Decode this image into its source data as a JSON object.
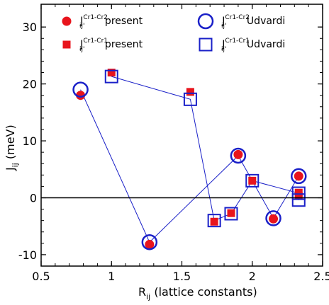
{
  "chart_data": {
    "type": "scatter",
    "xlabel": {
      "main": "R",
      "sub": "ij",
      "rest": " (lattice constants)"
    },
    "ylabel": {
      "main": "J",
      "sub": "ij",
      "rest": " (meV)"
    },
    "xlim": [
      0.5,
      2.5
    ],
    "ylim": [
      -12,
      34
    ],
    "xticks": [
      0.5,
      1.0,
      1.5,
      2.0,
      2.5
    ],
    "xtick_labels": [
      "0.5",
      "1",
      "1.5",
      "2",
      "2.5"
    ],
    "yticks": [
      -10,
      0,
      10,
      20,
      30
    ],
    "ytick_labels": [
      "-10",
      "0",
      "10",
      "20",
      "30"
    ],
    "zero_line": true,
    "grid": false,
    "legend_placement": "top",
    "colors": {
      "present": "#e8141c",
      "udvardi": "#1a20c8"
    },
    "series": [
      {
        "name": {
          "main": "J",
          "sup": "Cr1-Cr2",
          "sub": "ij'",
          "rest": " present"
        },
        "marker": "circle-filled",
        "x": [
          0.78,
          1.27,
          1.9,
          2.15,
          2.33
        ],
        "y": [
          18.0,
          -8.2,
          7.6,
          -3.7,
          3.8
        ]
      },
      {
        "name": {
          "main": "J",
          "sup": "Cr1-Cr1",
          "sub": "ij'",
          "rest": " present"
        },
        "marker": "square-filled",
        "x": [
          1.0,
          1.56,
          1.73,
          1.85,
          2.0,
          2.33,
          2.33
        ],
        "y": [
          22.0,
          18.6,
          -4.2,
          -2.7,
          3.0,
          0.3,
          0.9
        ]
      },
      {
        "name": {
          "main": "J",
          "sup": "Cr1-Cr2",
          "sub": "ij'",
          "rest": " Udvardi"
        },
        "marker": "circle-open",
        "x": [
          0.78,
          1.27,
          1.9,
          2.15,
          2.33
        ],
        "y": [
          19.0,
          -7.8,
          7.4,
          -3.6,
          3.8
        ]
      },
      {
        "name": {
          "main": "J",
          "sup": "Cr1-Cr1",
          "sub": "ij'",
          "rest": " Udvardi"
        },
        "marker": "square-open",
        "x": [
          1.0,
          1.56,
          1.73,
          1.85,
          2.0,
          2.33,
          2.33
        ],
        "y": [
          21.3,
          17.3,
          -4.0,
          -2.8,
          3.0,
          0.8,
          -0.4
        ]
      }
    ]
  }
}
